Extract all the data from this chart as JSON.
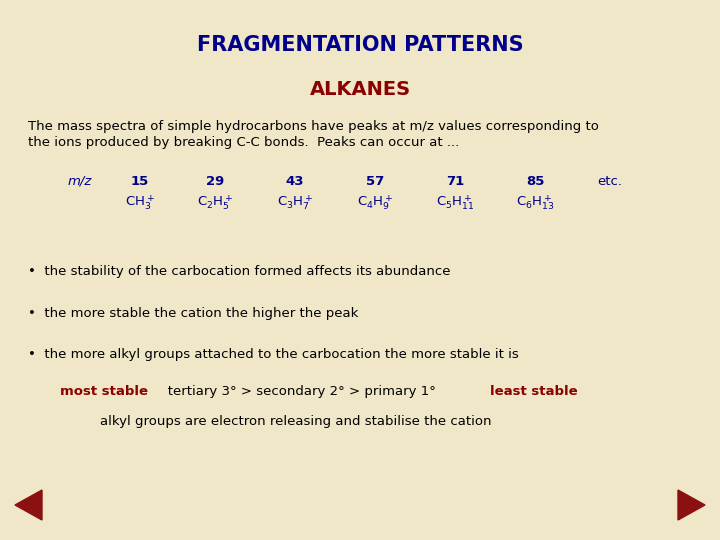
{
  "background_color": "#f0e6c8",
  "title": "FRAGMENTATION PATTERNS",
  "title_color": "#00008b",
  "title_fontsize": 15,
  "subtitle": "ALKANES",
  "subtitle_color": "#8b0000",
  "subtitle_fontsize": 14,
  "body_color": "#00008b",
  "bullet_color": "#000000",
  "intro_text_line1": "The mass spectra of simple hydrocarbons have peaks at m/z values corresponding to",
  "intro_text_line2": "the ions produced by breaking C-C bonds.  Peaks can occur at ...",
  "mz_label": "m/z",
  "mz_values": [
    "15",
    "29",
    "43",
    "57",
    "71",
    "85",
    "etc."
  ],
  "bullet_points": [
    "the stability of the carbocation formed affects its abundance",
    "the more stable the cation the higher the peak",
    "the more alkyl groups attached to the carbocation the more stable it is"
  ],
  "most_stable_text": "most stable",
  "least_stable_text": "least stable",
  "stability_middle": "   tertiary 3° > secondary 2° > primary 1°   ",
  "last_line": "alkyl groups are electron releasing and stabilise the cation",
  "red_color": "#8b0000",
  "nav_color": "#8b1010"
}
